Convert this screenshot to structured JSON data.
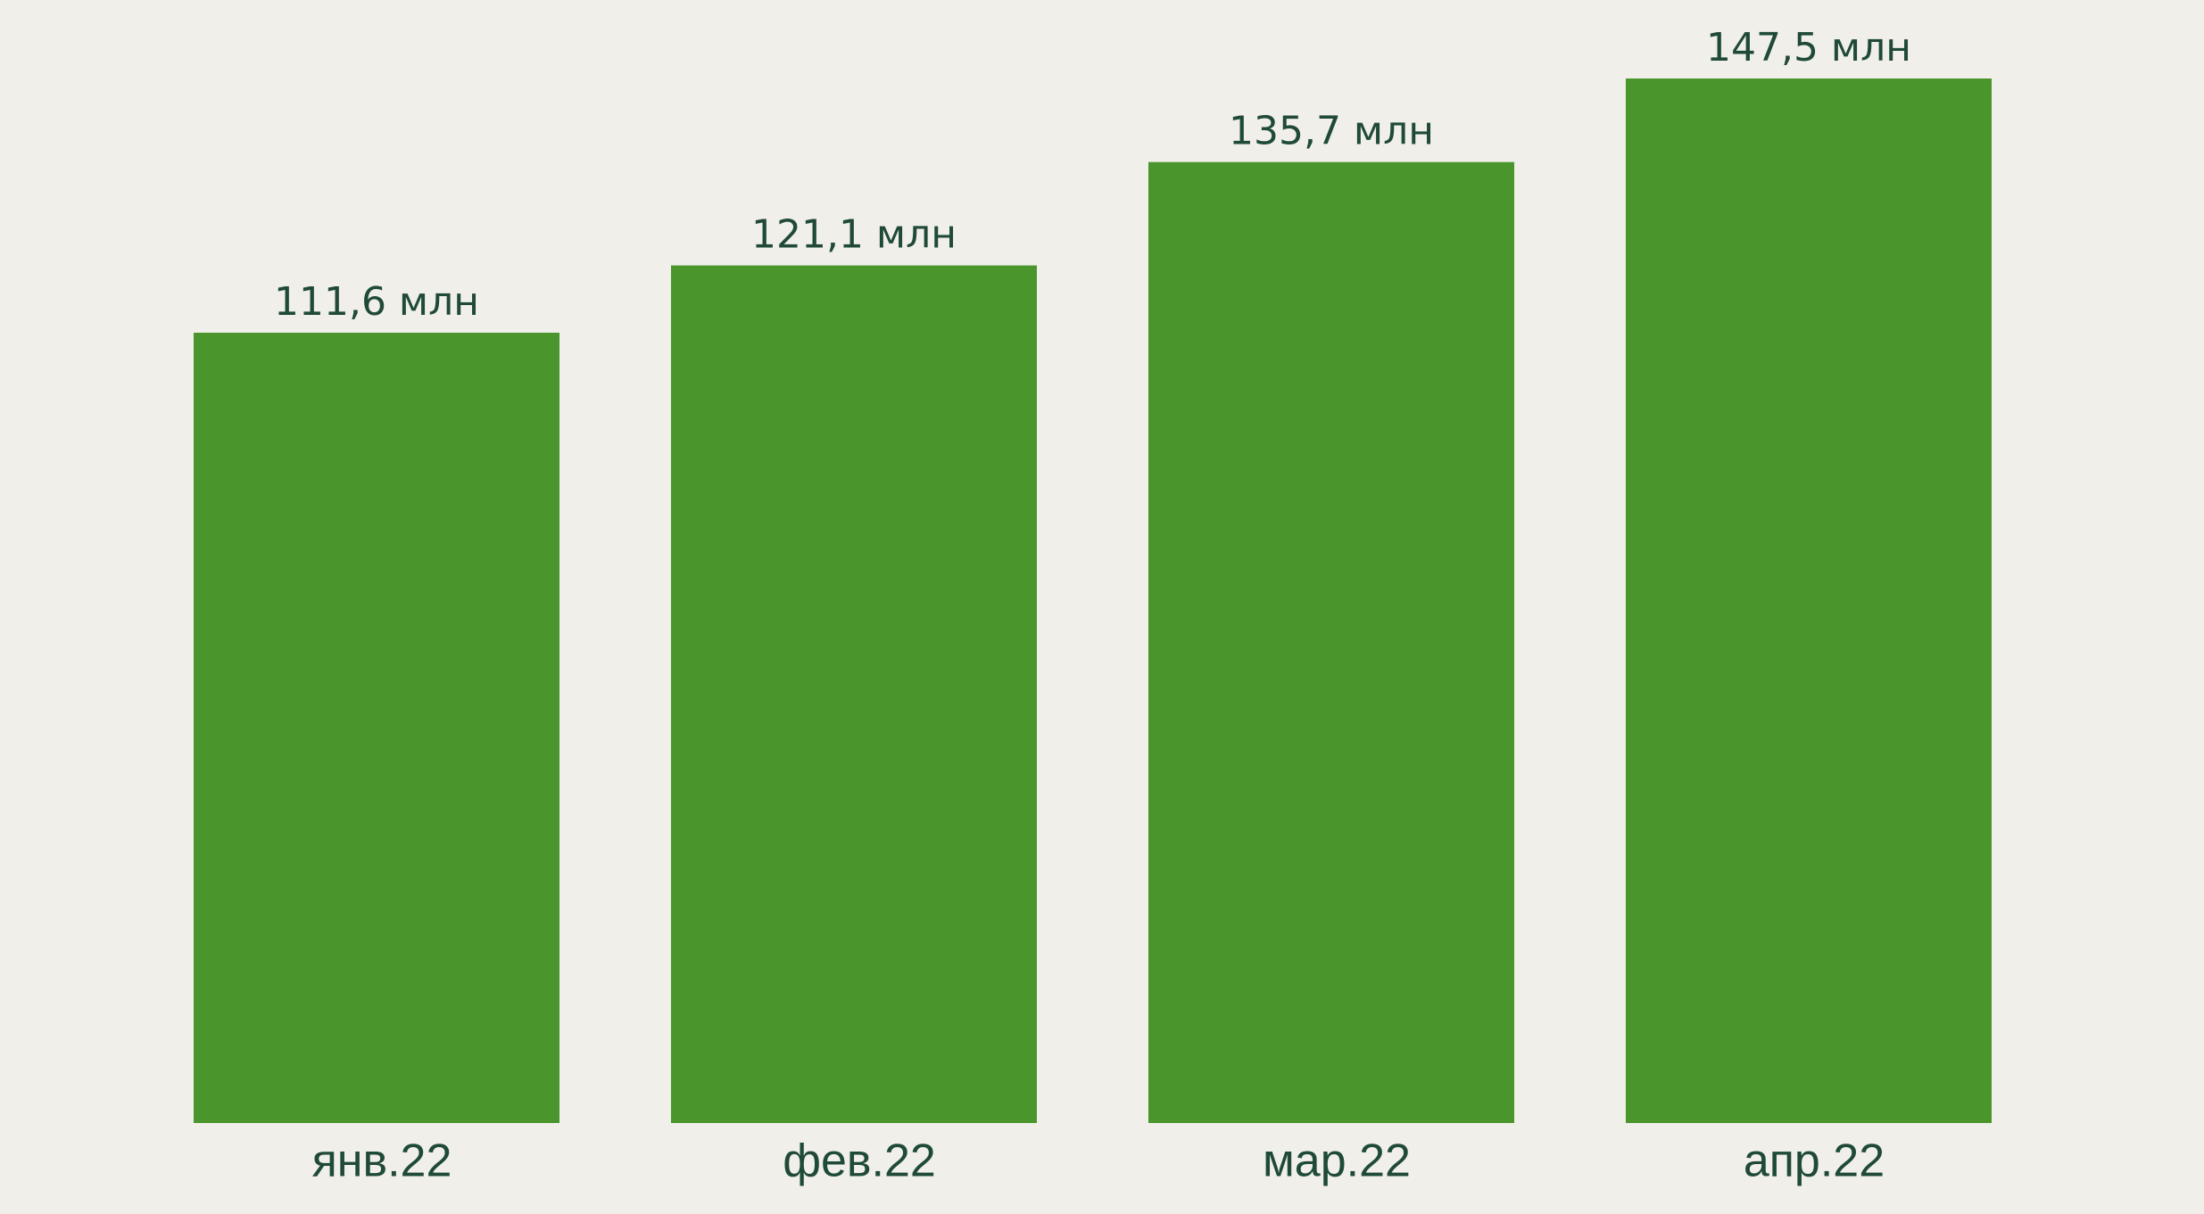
{
  "chart_data": {
    "type": "bar",
    "categories": [
      "янв.22",
      "фев.22",
      "мар.22",
      "апр.22"
    ],
    "values": [
      111.6,
      121.1,
      135.7,
      147.5
    ],
    "value_labels": [
      "111,6 млн",
      "121,1 млн",
      "135,7 млн",
      "147,5 млн"
    ],
    "color": "#4a962d"
  }
}
